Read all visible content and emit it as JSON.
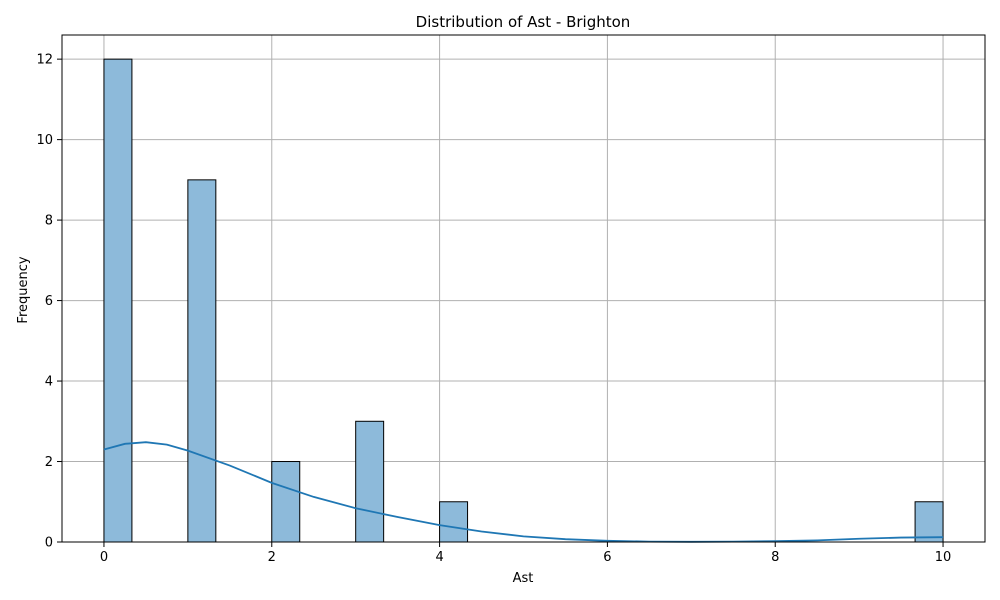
{
  "chart_data": {
    "type": "bar",
    "title": "Distribution of Ast - Brighton",
    "xlabel": "Ast",
    "ylabel": "Frequency",
    "xlim": [
      -0.5,
      10.5
    ],
    "ylim": [
      0,
      12.6
    ],
    "x_ticks": [
      0,
      2,
      4,
      6,
      8,
      10
    ],
    "y_ticks": [
      0,
      2,
      4,
      6,
      8,
      10,
      12
    ],
    "bin_width": 0.3333,
    "histogram_bins": [
      {
        "x_start": 0,
        "count": 12
      },
      {
        "x_start": 1,
        "count": 9
      },
      {
        "x_start": 2,
        "count": 2
      },
      {
        "x_start": 3,
        "count": 3
      },
      {
        "x_start": 4,
        "count": 1
      },
      {
        "x_start": 9.6667,
        "count": 1
      }
    ],
    "kde_curve": {
      "x": [
        0,
        0.25,
        0.5,
        0.75,
        1,
        1.5,
        2,
        2.5,
        3,
        3.5,
        4,
        4.5,
        5,
        5.5,
        6,
        6.5,
        7,
        7.5,
        8,
        8.5,
        9,
        9.5,
        10
      ],
      "y": [
        2.3,
        2.44,
        2.48,
        2.42,
        2.27,
        1.9,
        1.47,
        1.12,
        0.84,
        0.62,
        0.42,
        0.26,
        0.14,
        0.07,
        0.03,
        0.01,
        0.005,
        0.01,
        0.02,
        0.04,
        0.08,
        0.11,
        0.12
      ]
    },
    "grid": true,
    "colors": {
      "bar_fill": "#8dbada",
      "bar_edge": "#000000",
      "kde_line": "#1f77b4",
      "grid": "#b0b0b0"
    }
  }
}
